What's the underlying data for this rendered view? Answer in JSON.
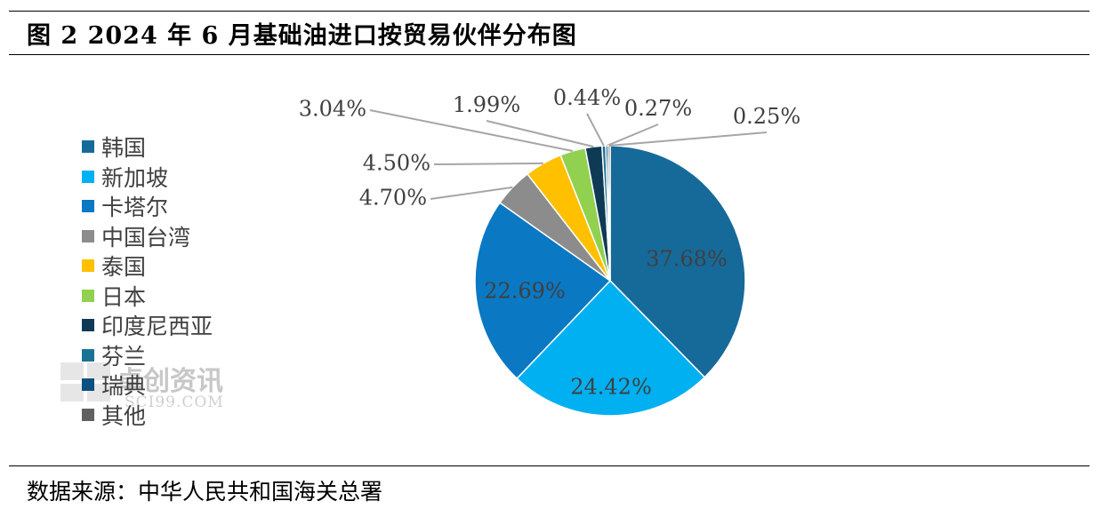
{
  "header": {
    "title": "图 2 2024 年 6 月基础油进口按贸易伙伴分布图"
  },
  "footer": {
    "source": "数据来源：中华人民共和国海关总署"
  },
  "watermark": {
    "text": "卓创资讯",
    "sub": "SCI99.COM"
  },
  "chart_data": {
    "type": "pie",
    "title": "",
    "legend_position": "left",
    "slices": [
      {
        "label": "韩国",
        "value": 37.68,
        "value_label": "37.68%",
        "color": "#166a9a",
        "label_inside": true
      },
      {
        "label": "新加坡",
        "value": 24.42,
        "value_label": "24.42%",
        "color": "#00b0f0",
        "label_inside": true
      },
      {
        "label": "卡塔尔",
        "value": 22.69,
        "value_label": "22.69%",
        "color": "#0a78c2",
        "label_inside": true
      },
      {
        "label": "中国台湾",
        "value": 4.7,
        "value_label": "4.70%",
        "color": "#8c8c8c",
        "label_inside": false
      },
      {
        "label": "泰国",
        "value": 4.5,
        "value_label": "4.50%",
        "color": "#ffc000",
        "label_inside": false
      },
      {
        "label": "日本",
        "value": 3.04,
        "value_label": "3.04%",
        "color": "#92d050",
        "label_inside": false
      },
      {
        "label": "印度尼西亚",
        "value": 1.99,
        "value_label": "1.99%",
        "color": "#0e3a56",
        "label_inside": false
      },
      {
        "label": "芬兰",
        "value": 0.44,
        "value_label": "0.44%",
        "color": "#1b7394",
        "label_inside": false
      },
      {
        "label": "瑞典",
        "value": 0.27,
        "value_label": "0.27%",
        "color": "#0d4f7f",
        "label_inside": false
      },
      {
        "label": "其他",
        "value": 0.25,
        "value_label": "0.25%",
        "color": "#606060",
        "label_inside": false
      }
    ]
  }
}
